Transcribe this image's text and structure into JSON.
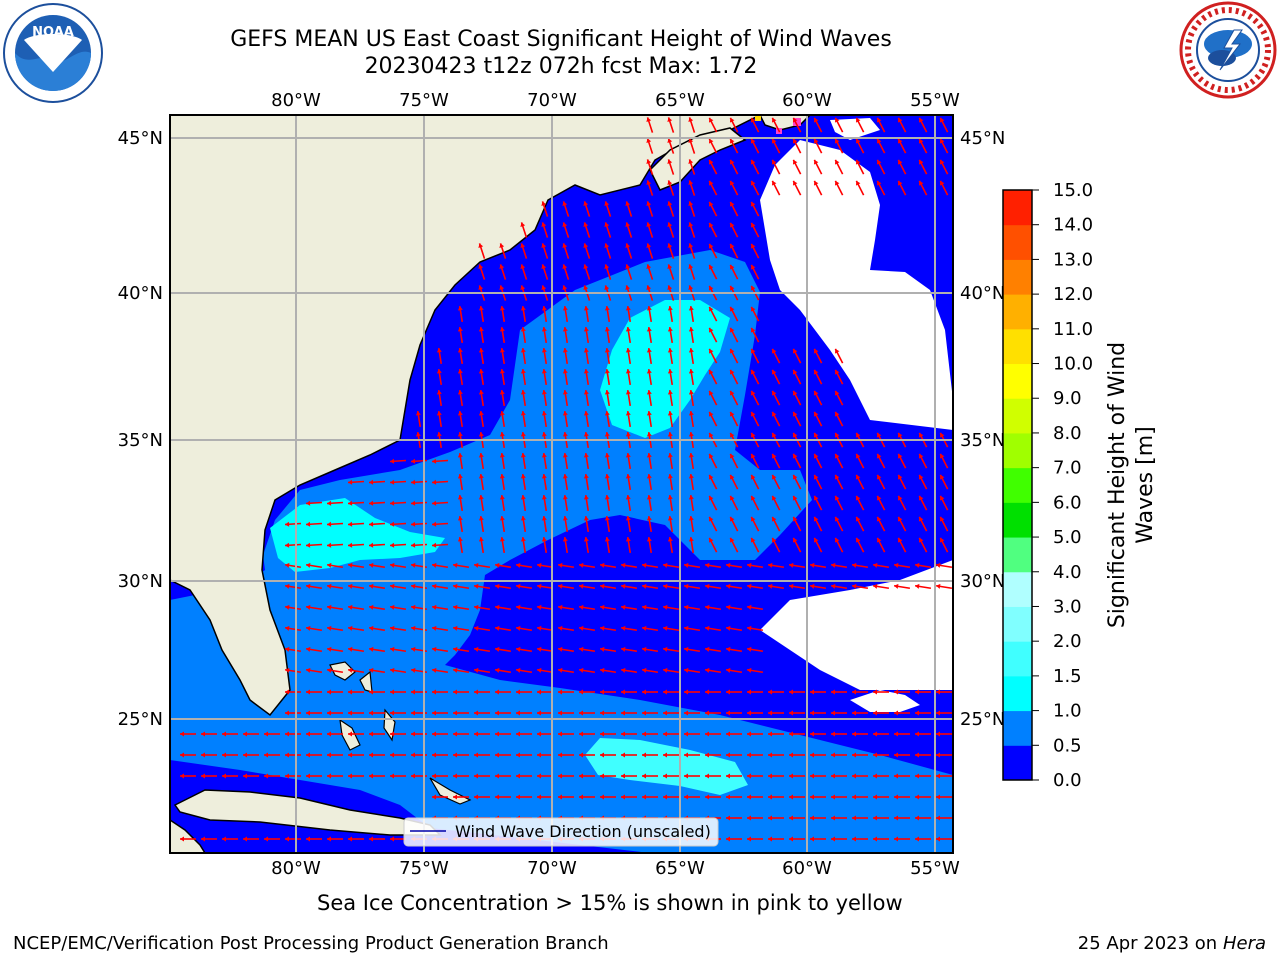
{
  "title_line1": "GEFS MEAN US East Coast Significant Height of Wind Waves",
  "title_line2": "20230423 t12z 072h fcst   Max: 1.72",
  "logos": {
    "left": "noaa-logo",
    "right": "national-weather-service-logo"
  },
  "map": {
    "lon_ticks": [
      "80°W",
      "75°W",
      "70°W",
      "65°W",
      "60°W",
      "55°W"
    ],
    "lat_ticks": [
      "45°N",
      "40°N",
      "35°N",
      "30°N",
      "25°N"
    ],
    "legend_label": "Wind Wave Direction (unscaled)",
    "land_color": "#eeeedc",
    "arrow_color": "#ff0000"
  },
  "colorbar": {
    "label": "Significant Height of Wind Waves [m]",
    "label_line1": "Significant Height of Wind",
    "label_line2": "Waves [m]",
    "ticks": [
      "0.0",
      "0.5",
      "1.0",
      "1.5",
      "2.0",
      "3.0",
      "4.0",
      "5.0",
      "6.0",
      "7.0",
      "8.0",
      "9.0",
      "10.0",
      "11.0",
      "12.0",
      "13.0",
      "14.0",
      "15.0"
    ],
    "colors": [
      "#0000ff",
      "#0080ff",
      "#00ffff",
      "#40ffff",
      "#80ffff",
      "#b0ffff",
      "#50ff80",
      "#00e000",
      "#40ff00",
      "#a0ff00",
      "#d0ff00",
      "#ffff00",
      "#ffe000",
      "#ffb000",
      "#ff8000",
      "#ff5000",
      "#ff2000",
      "#ff0000"
    ]
  },
  "caption": "Sea Ice Concentration > 15% is shown in pink to yellow",
  "footer_left": "NCEP/EMC/Verification Post Processing Product Generation Branch",
  "footer_right_date": "25 Apr 2023 on ",
  "footer_right_host": "Hera"
}
